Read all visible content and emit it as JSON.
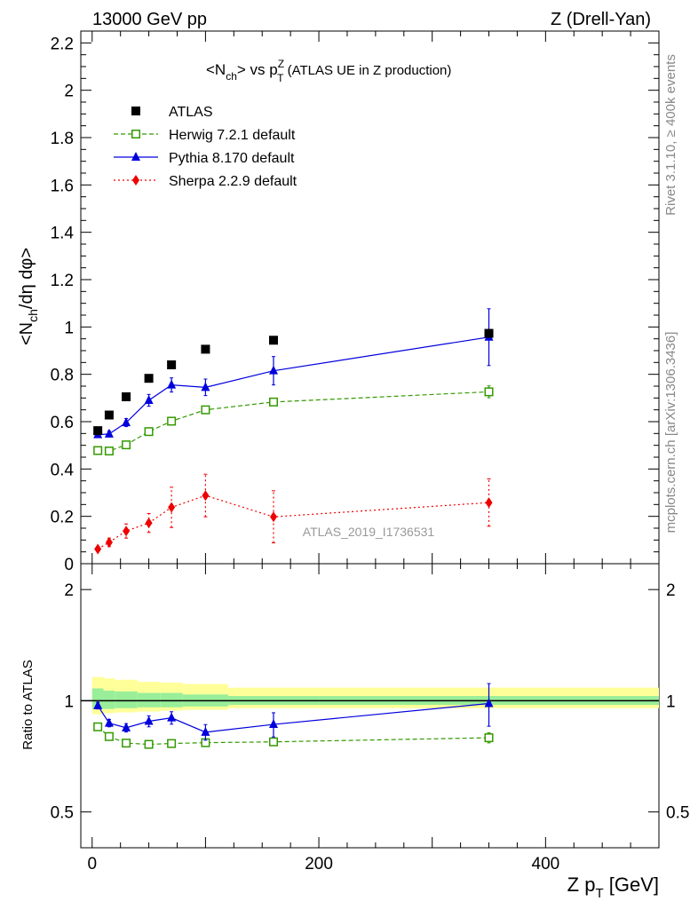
{
  "header": {
    "left": "13000 GeV pp",
    "right": "Z (Drell-Yan)"
  },
  "side_labels": {
    "rivet": "Rivet 3.1.10, ≥ 400k events",
    "mcplots": "mcplots.cern.ch [arXiv:1306.3436]"
  },
  "chart_data": [
    {
      "type": "scatter",
      "title_main": "<N",
      "title_sub": "ch",
      "title_mid": "> vs p",
      "title_sup": "Z",
      "title_sub2": "T",
      "title_rest": " (ATLAS UE in Z production)",
      "ylabel": "<Nch/dη dφ>",
      "ylim": [
        0,
        2.25
      ],
      "xlim": [
        -10,
        500
      ],
      "yticks": [
        0,
        0.2,
        0.4,
        0.6,
        0.8,
        1,
        1.2,
        1.4,
        1.6,
        1.8,
        2,
        2.2
      ],
      "ytick_labels": [
        "0",
        "0.2",
        "0.4",
        "0.6",
        "0.8",
        "1",
        "1.2",
        "1.4",
        "1.6",
        "1.8",
        "2",
        "2.2"
      ],
      "watermark": "ATLAS_2019_I1736531",
      "legend_position": "top-left",
      "series": [
        {
          "name": "ATLAS",
          "color": "#000000",
          "marker": "square-filled",
          "line": "none",
          "x": [
            5,
            15,
            30,
            50,
            70,
            100,
            160,
            350
          ],
          "y": [
            0.562,
            0.628,
            0.705,
            0.783,
            0.84,
            0.906,
            0.944,
            0.973
          ],
          "err": [
            0,
            0,
            0,
            0,
            0,
            0,
            0,
            0
          ]
        },
        {
          "name": "Herwig 7.2.1 default",
          "color": "#339900",
          "marker": "square-open",
          "line": "dashed",
          "x": [
            5,
            15,
            30,
            50,
            70,
            100,
            160,
            350
          ],
          "y": [
            0.478,
            0.476,
            0.502,
            0.558,
            0.602,
            0.65,
            0.683,
            0.726
          ],
          "err": [
            0.008,
            0.008,
            0.009,
            0.01,
            0.011,
            0.013,
            0.015,
            0.025
          ]
        },
        {
          "name": "Pythia 8.170 default",
          "color": "#0000dd",
          "marker": "triangle-filled",
          "line": "solid",
          "x": [
            5,
            15,
            30,
            50,
            70,
            100,
            160,
            350
          ],
          "y": [
            0.545,
            0.548,
            0.596,
            0.69,
            0.755,
            0.745,
            0.815,
            0.957
          ],
          "err": [
            0.012,
            0.013,
            0.017,
            0.025,
            0.03,
            0.035,
            0.06,
            0.12
          ]
        },
        {
          "name": "Sherpa 2.2.9 default",
          "color": "#ee0000",
          "marker": "diamond-filled",
          "line": "dotted",
          "x": [
            5,
            15,
            30,
            50,
            70,
            100,
            160,
            350
          ],
          "y": [
            0.062,
            0.09,
            0.138,
            0.172,
            0.238,
            0.288,
            0.198,
            0.258
          ],
          "err": [
            0.01,
            0.018,
            0.03,
            0.04,
            0.085,
            0.09,
            0.11,
            0.1
          ]
        }
      ]
    },
    {
      "type": "scatter",
      "ylabel": "Ratio to ATLAS",
      "xlabel_main": "Z p",
      "xlabel_sub": "T",
      "xlabel_rest": " [GeV]",
      "ylim": [
        0.4,
        2.35
      ],
      "log_y": true,
      "xticks": [
        0,
        200,
        400
      ],
      "xtick_labels": [
        "0",
        "200",
        "400"
      ],
      "yticks": [
        0.5,
        1,
        2
      ],
      "ytick_labels": [
        "0.5",
        "1",
        "2"
      ],
      "reference_line": 1,
      "uncertainty_bands": {
        "bin_edges": [
          0,
          10,
          20,
          40,
          60,
          80,
          120,
          200,
          500
        ],
        "inner_lo": [
          0.95,
          0.95,
          0.955,
          0.96,
          0.96,
          0.965,
          0.975,
          0.975
        ],
        "inner_hi": [
          1.08,
          1.065,
          1.06,
          1.05,
          1.05,
          1.04,
          1.03,
          1.03
        ],
        "outer_lo": [
          0.92,
          0.925,
          0.93,
          0.935,
          0.94,
          0.945,
          0.955,
          0.955
        ],
        "outer_hi": [
          1.16,
          1.15,
          1.14,
          1.125,
          1.12,
          1.11,
          1.085,
          1.085
        ],
        "inner_color": "#99ee99",
        "outer_color": "#ffff99"
      },
      "series": [
        {
          "name": "Herwig 7.2.1 default",
          "color": "#339900",
          "marker": "square-open",
          "line": "dashed",
          "x": [
            5,
            15,
            30,
            50,
            70,
            100,
            160,
            350
          ],
          "y": [
            0.85,
            0.8,
            0.768,
            0.762,
            0.766,
            0.77,
            0.774,
            0.794
          ],
          "err": [
            0.015,
            0.013,
            0.012,
            0.012,
            0.013,
            0.014,
            0.015,
            0.025
          ]
        },
        {
          "name": "Pythia 8.170 default",
          "color": "#0000dd",
          "marker": "triangle-filled",
          "line": "solid",
          "x": [
            5,
            15,
            30,
            50,
            70,
            100,
            160,
            350
          ],
          "y": [
            0.97,
            0.87,
            0.845,
            0.88,
            0.899,
            0.822,
            0.863,
            0.983
          ],
          "err": [
            0.02,
            0.02,
            0.022,
            0.03,
            0.035,
            0.04,
            0.065,
            0.13
          ]
        }
      ]
    }
  ]
}
